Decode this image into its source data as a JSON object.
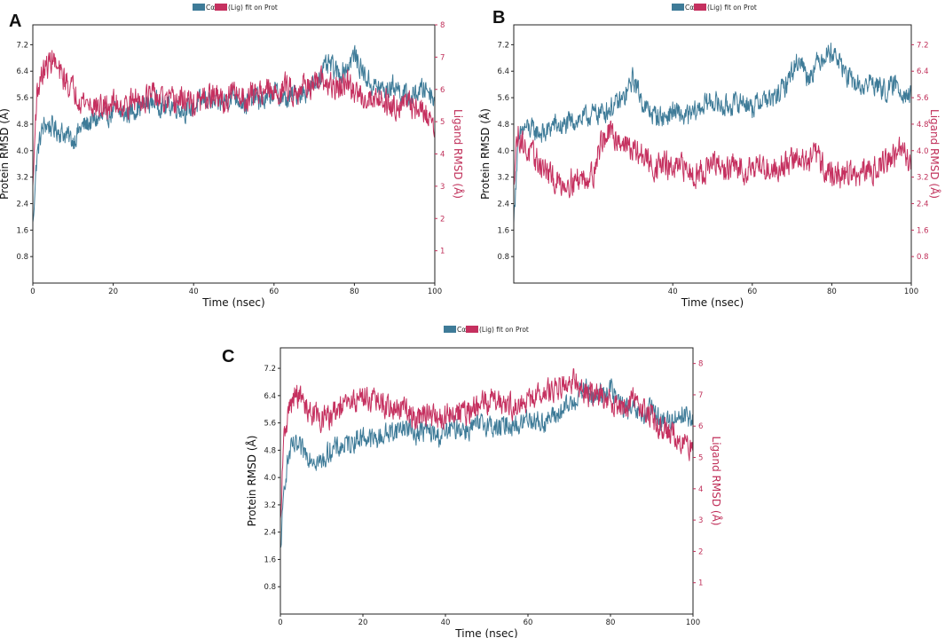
{
  "colors": {
    "protein": "#3e7b98",
    "ligand": "#c5305f",
    "ligand_axis": "#c0305a",
    "axis": "#222222"
  },
  "legend": {
    "protein_label": "Cα",
    "ligand_label": "(Lig) fit on Prot"
  },
  "chart_data": [
    {
      "type": "line",
      "panel": "A",
      "xlabel": "Time (nsec)",
      "ylabel_left": "Protein RMSD (Å)",
      "ylabel_right": "Ligand RMSD (Å)",
      "x_ticks": [
        "0",
        "20",
        "40",
        "60",
        "80",
        "100"
      ],
      "x_tick_values": [
        0,
        20,
        40,
        60,
        80,
        100
      ],
      "xlim": [
        0,
        100
      ],
      "y_left_ticks": [
        "0.8",
        "1.6",
        "2.4",
        "3.2",
        "4.0",
        "4.8",
        "5.6",
        "6.4",
        "7.2"
      ],
      "y_left_values": [
        0.8,
        1.6,
        2.4,
        3.2,
        4.0,
        4.8,
        5.6,
        6.4,
        7.2
      ],
      "ylim_left": [
        0,
        7.8
      ],
      "y_right_ticks": [
        "1",
        "2",
        "3",
        "4",
        "5",
        "6",
        "7",
        "8"
      ],
      "y_right_values": [
        1,
        2,
        3,
        4,
        5,
        6,
        7,
        8
      ],
      "ylim_right": [
        0,
        8
      ],
      "series": [
        {
          "name": "Cα",
          "axis": "left",
          "x": [
            0,
            0.5,
            1,
            2,
            3,
            5,
            8,
            10,
            12,
            15,
            18,
            20,
            23,
            26,
            30,
            33,
            35,
            38,
            40,
            43,
            45,
            48,
            50,
            53,
            55,
            58,
            60,
            63,
            65,
            68,
            70,
            72,
            74,
            76,
            78,
            80,
            82,
            84,
            86,
            88,
            90,
            92,
            94,
            96,
            98,
            100
          ],
          "y": [
            1.95,
            2.8,
            3.8,
            4.5,
            4.8,
            4.7,
            4.5,
            4.3,
            4.7,
            4.9,
            5.0,
            5.2,
            5.1,
            5.3,
            5.5,
            5.3,
            5.4,
            5.2,
            5.3,
            5.6,
            5.4,
            5.5,
            5.7,
            5.4,
            5.6,
            5.5,
            5.8,
            5.5,
            5.7,
            5.8,
            6.0,
            6.4,
            6.6,
            6.3,
            6.5,
            6.9,
            6.4,
            6.0,
            5.9,
            5.8,
            6.0,
            5.7,
            5.6,
            5.8,
            5.9,
            5.6
          ]
        },
        {
          "name": "(Lig) fit on Prot",
          "axis": "right",
          "x": [
            0,
            0.5,
            1,
            2,
            3,
            4,
            5,
            6,
            8,
            10,
            12,
            15,
            18,
            20,
            23,
            26,
            30,
            33,
            35,
            38,
            40,
            43,
            45,
            48,
            50,
            53,
            55,
            58,
            60,
            63,
            65,
            68,
            70,
            72,
            74,
            76,
            78,
            80,
            82,
            84,
            86,
            88,
            90,
            92,
            94,
            96,
            98,
            100
          ],
          "y": [
            3.2,
            4.8,
            5.8,
            6.4,
            6.6,
            6.8,
            7.0,
            6.6,
            6.3,
            6.0,
            5.7,
            5.5,
            5.4,
            5.6,
            5.5,
            5.7,
            5.8,
            5.6,
            5.6,
            5.7,
            5.5,
            5.7,
            5.8,
            5.6,
            5.9,
            5.7,
            5.9,
            6.0,
            5.8,
            6.1,
            5.9,
            6.2,
            6.0,
            6.3,
            6.1,
            6.0,
            6.2,
            5.9,
            5.8,
            5.7,
            5.8,
            5.6,
            5.5,
            5.6,
            5.5,
            5.4,
            5.2,
            5.0
          ]
        }
      ]
    },
    {
      "type": "line",
      "panel": "B",
      "xlabel": "Time (nsec)",
      "ylabel_left": "Protein RMSD (Å)",
      "ylabel_right": "Ligand RMSD (Å)",
      "x_ticks": [
        "40",
        "60",
        "80",
        "100"
      ],
      "x_tick_values": [
        40,
        60,
        80,
        100
      ],
      "xlim": [
        0,
        100
      ],
      "y_left_ticks": [
        "0.8",
        "1.6",
        "2.4",
        "3.2",
        "4.0",
        "4.8",
        "5.6",
        "6.4",
        "7.2"
      ],
      "y_left_values": [
        0.8,
        1.6,
        2.4,
        3.2,
        4.0,
        4.8,
        5.6,
        6.4,
        7.2
      ],
      "ylim_left": [
        0,
        7.8
      ],
      "y_right_ticks": [
        "0.8",
        "1.6",
        "2.4",
        "3.2",
        "4.0",
        "4.8",
        "5.6",
        "6.4",
        "7.2"
      ],
      "y_right_values": [
        0.8,
        1.6,
        2.4,
        3.2,
        4.0,
        4.8,
        5.6,
        6.4,
        7.2
      ],
      "ylim_right": [
        0,
        7.8
      ],
      "series": [
        {
          "name": "Cα",
          "axis": "left",
          "x": [
            0,
            0.5,
            1,
            2,
            3,
            5,
            8,
            10,
            12,
            15,
            18,
            20,
            23,
            26,
            28,
            30,
            33,
            35,
            38,
            40,
            43,
            45,
            48,
            50,
            53,
            55,
            58,
            60,
            63,
            65,
            68,
            70,
            72,
            74,
            76,
            78,
            80,
            82,
            84,
            86,
            88,
            90,
            92,
            94,
            96,
            98,
            100
          ],
          "y": [
            2.0,
            3.0,
            4.0,
            4.6,
            4.7,
            4.6,
            4.5,
            4.8,
            4.7,
            4.9,
            5.0,
            5.1,
            5.2,
            5.4,
            5.6,
            6.2,
            5.3,
            5.1,
            5.0,
            5.2,
            5.0,
            5.1,
            5.4,
            5.5,
            5.3,
            5.4,
            5.5,
            5.3,
            5.6,
            5.5,
            5.9,
            6.4,
            6.8,
            6.2,
            6.6,
            6.9,
            7.0,
            6.7,
            6.2,
            6.0,
            5.9,
            6.1,
            5.9,
            5.8,
            6.0,
            5.8,
            5.6
          ]
        },
        {
          "name": "(Lig) fit on Prot",
          "axis": "right",
          "x": [
            0,
            0.5,
            1,
            2,
            3,
            5,
            8,
            10,
            12,
            15,
            18,
            20,
            22,
            24,
            26,
            28,
            30,
            33,
            35,
            38,
            40,
            43,
            45,
            48,
            50,
            53,
            55,
            58,
            60,
            63,
            65,
            68,
            70,
            72,
            74,
            76,
            78,
            80,
            82,
            84,
            86,
            88,
            90,
            92,
            94,
            96,
            98,
            100
          ],
          "y": [
            3.1,
            4.0,
            4.5,
            4.3,
            4.0,
            3.8,
            3.4,
            3.1,
            3.0,
            3.1,
            3.2,
            3.3,
            4.3,
            4.5,
            4.4,
            4.2,
            4.0,
            3.8,
            3.5,
            3.6,
            3.4,
            3.5,
            3.3,
            3.4,
            3.6,
            3.4,
            3.5,
            3.4,
            3.6,
            3.5,
            3.4,
            3.6,
            3.7,
            3.8,
            3.6,
            3.9,
            3.5,
            3.3,
            3.2,
            3.4,
            3.2,
            3.3,
            3.4,
            3.6,
            3.7,
            3.9,
            4.0,
            3.6
          ]
        }
      ]
    },
    {
      "type": "line",
      "panel": "C",
      "xlabel": "Time (nsec)",
      "ylabel_left": "Protein RMSD (Å)",
      "ylabel_right": "Ligand RMSD (Å)",
      "x_ticks": [
        "0",
        "20",
        "40",
        "60",
        "80",
        "100"
      ],
      "x_tick_values": [
        0,
        20,
        40,
        60,
        80,
        100
      ],
      "xlim": [
        0,
        100
      ],
      "y_left_ticks": [
        "0.8",
        "1.6",
        "2.4",
        "3.2",
        "4.0",
        "4.8",
        "5.6",
        "6.4",
        "7.2"
      ],
      "y_left_values": [
        0.8,
        1.6,
        2.4,
        3.2,
        4.0,
        4.8,
        5.6,
        6.4,
        7.2
      ],
      "ylim_left": [
        0,
        7.8
      ],
      "y_right_ticks": [
        "1",
        "2",
        "3",
        "4",
        "5",
        "6",
        "7",
        "8"
      ],
      "y_right_values": [
        1,
        2,
        3,
        4,
        5,
        6,
        7,
        8
      ],
      "ylim_right": [
        0,
        8.5
      ],
      "series": [
        {
          "name": "Cα",
          "axis": "left",
          "x": [
            0,
            0.5,
            1,
            2,
            3,
            5,
            8,
            10,
            12,
            15,
            18,
            20,
            23,
            26,
            30,
            33,
            35,
            38,
            40,
            43,
            45,
            48,
            50,
            53,
            55,
            58,
            60,
            63,
            65,
            68,
            70,
            72,
            74,
            76,
            78,
            80,
            82,
            84,
            86,
            88,
            90,
            92,
            94,
            96,
            98,
            100
          ],
          "y": [
            1.9,
            2.8,
            3.9,
            4.6,
            4.9,
            4.8,
            4.6,
            4.4,
            4.8,
            4.9,
            5.1,
            5.2,
            5.1,
            5.3,
            5.5,
            5.3,
            5.4,
            5.2,
            5.3,
            5.5,
            5.4,
            5.5,
            5.6,
            5.4,
            5.6,
            5.5,
            5.8,
            5.6,
            5.7,
            5.9,
            6.1,
            6.4,
            6.6,
            6.3,
            6.5,
            6.6,
            6.2,
            6.0,
            5.9,
            5.8,
            6.0,
            5.7,
            5.6,
            5.8,
            5.9,
            5.6
          ]
        },
        {
          "name": "(Lig) fit on Prot",
          "axis": "right",
          "x": [
            0,
            0.5,
            1,
            2,
            3,
            4,
            5,
            6,
            8,
            10,
            12,
            15,
            18,
            20,
            23,
            26,
            30,
            33,
            35,
            38,
            40,
            43,
            45,
            48,
            50,
            53,
            55,
            58,
            60,
            63,
            65,
            68,
            70,
            72,
            74,
            76,
            78,
            80,
            82,
            84,
            86,
            88,
            90,
            92,
            94,
            96,
            98,
            100
          ],
          "y": [
            3.0,
            4.6,
            5.8,
            6.5,
            6.8,
            7.0,
            6.9,
            6.6,
            6.4,
            6.2,
            6.3,
            6.6,
            6.8,
            7.0,
            6.8,
            6.6,
            6.5,
            6.3,
            6.4,
            6.2,
            6.3,
            6.5,
            6.4,
            6.6,
            6.8,
            6.9,
            6.7,
            6.6,
            6.8,
            7.0,
            7.1,
            7.3,
            7.5,
            7.4,
            7.1,
            6.9,
            7.0,
            6.8,
            6.7,
            6.6,
            6.9,
            6.5,
            6.3,
            6.0,
            5.8,
            5.7,
            5.4,
            5.2
          ]
        }
      ]
    }
  ]
}
